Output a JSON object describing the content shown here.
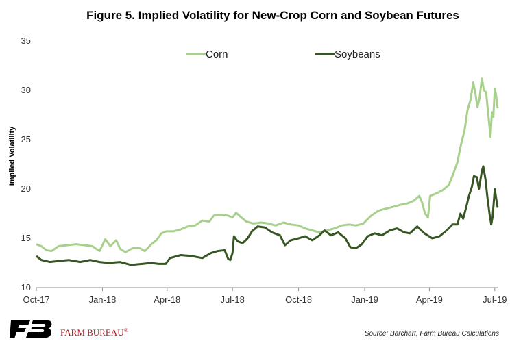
{
  "chart_data": {
    "type": "line",
    "title": "Figure 5. Implied Volatility for New-Crop Corn and Soybean Futures",
    "ylabel": "Implied Volatility",
    "xlabel": "",
    "ylim": [
      10,
      35
    ],
    "yticks": [
      "10",
      "15",
      "20",
      "25",
      "30",
      "35"
    ],
    "xtick_labels": [
      "Oct-17",
      "Jan-18",
      "Apr-18",
      "Jul-18",
      "Oct-18",
      "Jan-19",
      "Apr-19",
      "Jul-19"
    ],
    "xtick_dates": [
      "2017-10-01",
      "2018-01-01",
      "2018-04-01",
      "2018-07-01",
      "2018-10-01",
      "2019-01-01",
      "2019-04-01",
      "2019-07-01"
    ],
    "xlim": [
      "2017-10-01",
      "2019-07-05"
    ],
    "grid": false,
    "legend": "top",
    "series": [
      {
        "name": "Corn",
        "color": "#a8d08d",
        "points": [
          [
            "2017-10-01",
            14.4
          ],
          [
            "2017-10-08",
            14.2
          ],
          [
            "2017-10-15",
            13.8
          ],
          [
            "2017-10-22",
            13.7
          ],
          [
            "2017-11-01",
            14.2
          ],
          [
            "2017-11-12",
            14.3
          ],
          [
            "2017-11-25",
            14.4
          ],
          [
            "2017-12-08",
            14.3
          ],
          [
            "2017-12-18",
            14.2
          ],
          [
            "2017-12-28",
            13.7
          ],
          [
            "2018-01-05",
            14.9
          ],
          [
            "2018-01-12",
            14.2
          ],
          [
            "2018-01-20",
            14.8
          ],
          [
            "2018-01-26",
            13.9
          ],
          [
            "2018-02-02",
            13.6
          ],
          [
            "2018-02-12",
            14.0
          ],
          [
            "2018-02-22",
            14.0
          ],
          [
            "2018-03-01",
            13.7
          ],
          [
            "2018-03-10",
            14.4
          ],
          [
            "2018-03-17",
            14.8
          ],
          [
            "2018-03-24",
            15.5
          ],
          [
            "2018-03-31",
            15.7
          ],
          [
            "2018-04-10",
            15.7
          ],
          [
            "2018-04-20",
            15.9
          ],
          [
            "2018-04-30",
            16.2
          ],
          [
            "2018-05-10",
            16.3
          ],
          [
            "2018-05-20",
            16.8
          ],
          [
            "2018-05-30",
            16.7
          ],
          [
            "2018-06-05",
            17.3
          ],
          [
            "2018-06-15",
            17.4
          ],
          [
            "2018-06-25",
            17.3
          ],
          [
            "2018-07-01",
            17.1
          ],
          [
            "2018-07-06",
            17.6
          ],
          [
            "2018-07-12",
            17.2
          ],
          [
            "2018-07-20",
            16.7
          ],
          [
            "2018-07-30",
            16.5
          ],
          [
            "2018-08-10",
            16.6
          ],
          [
            "2018-08-20",
            16.5
          ],
          [
            "2018-08-30",
            16.3
          ],
          [
            "2018-09-10",
            16.6
          ],
          [
            "2018-09-20",
            16.4
          ],
          [
            "2018-10-01",
            16.3
          ],
          [
            "2018-10-10",
            16.0
          ],
          [
            "2018-10-20",
            15.8
          ],
          [
            "2018-10-30",
            15.6
          ],
          [
            "2018-11-10",
            15.8
          ],
          [
            "2018-11-20",
            16.0
          ],
          [
            "2018-11-30",
            16.3
          ],
          [
            "2018-12-10",
            16.4
          ],
          [
            "2018-12-20",
            16.3
          ],
          [
            "2018-12-30",
            16.5
          ],
          [
            "2019-01-10",
            17.3
          ],
          [
            "2019-01-20",
            17.8
          ],
          [
            "2019-01-30",
            18.0
          ],
          [
            "2019-02-10",
            18.2
          ],
          [
            "2019-02-20",
            18.4
          ],
          [
            "2019-02-28",
            18.5
          ],
          [
            "2019-03-10",
            18.8
          ],
          [
            "2019-03-18",
            19.3
          ],
          [
            "2019-03-22",
            18.6
          ],
          [
            "2019-03-26",
            17.5
          ],
          [
            "2019-03-30",
            17.1
          ],
          [
            "2019-04-02",
            19.3
          ],
          [
            "2019-04-12",
            19.6
          ],
          [
            "2019-04-20",
            19.9
          ],
          [
            "2019-04-28",
            20.4
          ],
          [
            "2019-05-04",
            21.5
          ],
          [
            "2019-05-10",
            22.7
          ],
          [
            "2019-05-15",
            24.5
          ],
          [
            "2019-05-20",
            26.0
          ],
          [
            "2019-05-24",
            28.0
          ],
          [
            "2019-05-28",
            29.0
          ],
          [
            "2019-06-01",
            30.8
          ],
          [
            "2019-06-04",
            29.7
          ],
          [
            "2019-06-07",
            28.3
          ],
          [
            "2019-06-10",
            29.3
          ],
          [
            "2019-06-13",
            31.2
          ],
          [
            "2019-06-16",
            30.0
          ],
          [
            "2019-06-19",
            29.8
          ],
          [
            "2019-06-22",
            27.5
          ],
          [
            "2019-06-25",
            25.3
          ],
          [
            "2019-06-27",
            27.8
          ],
          [
            "2019-06-29",
            27.3
          ],
          [
            "2019-07-01",
            30.2
          ],
          [
            "2019-07-03",
            29.4
          ],
          [
            "2019-07-05",
            28.2
          ]
        ]
      },
      {
        "name": "Soybeans",
        "color": "#375623",
        "points": [
          [
            "2017-10-01",
            13.2
          ],
          [
            "2017-10-08",
            12.8
          ],
          [
            "2017-10-20",
            12.6
          ],
          [
            "2017-11-01",
            12.7
          ],
          [
            "2017-11-15",
            12.8
          ],
          [
            "2017-12-01",
            12.6
          ],
          [
            "2017-12-15",
            12.8
          ],
          [
            "2017-12-28",
            12.6
          ],
          [
            "2018-01-10",
            12.5
          ],
          [
            "2018-01-25",
            12.6
          ],
          [
            "2018-02-10",
            12.3
          ],
          [
            "2018-02-25",
            12.4
          ],
          [
            "2018-03-10",
            12.5
          ],
          [
            "2018-03-20",
            12.4
          ],
          [
            "2018-03-30",
            12.4
          ],
          [
            "2018-04-05",
            13.0
          ],
          [
            "2018-04-20",
            13.3
          ],
          [
            "2018-05-05",
            13.2
          ],
          [
            "2018-05-20",
            13.0
          ],
          [
            "2018-06-01",
            13.5
          ],
          [
            "2018-06-10",
            13.7
          ],
          [
            "2018-06-20",
            13.8
          ],
          [
            "2018-06-25",
            12.9
          ],
          [
            "2018-06-28",
            12.8
          ],
          [
            "2018-07-01",
            13.5
          ],
          [
            "2018-07-03",
            15.2
          ],
          [
            "2018-07-08",
            14.7
          ],
          [
            "2018-07-15",
            14.5
          ],
          [
            "2018-07-22",
            15.0
          ],
          [
            "2018-07-28",
            15.7
          ],
          [
            "2018-08-05",
            16.2
          ],
          [
            "2018-08-15",
            16.1
          ],
          [
            "2018-08-25",
            15.6
          ],
          [
            "2018-09-05",
            15.3
          ],
          [
            "2018-09-12",
            14.3
          ],
          [
            "2018-09-20",
            14.8
          ],
          [
            "2018-10-01",
            15.0
          ],
          [
            "2018-10-10",
            15.2
          ],
          [
            "2018-10-20",
            14.8
          ],
          [
            "2018-10-30",
            15.3
          ],
          [
            "2018-11-06",
            15.8
          ],
          [
            "2018-11-15",
            15.3
          ],
          [
            "2018-11-25",
            15.6
          ],
          [
            "2018-12-05",
            15.0
          ],
          [
            "2018-12-12",
            14.1
          ],
          [
            "2018-12-20",
            14.0
          ],
          [
            "2018-12-28",
            14.4
          ],
          [
            "2019-01-05",
            15.2
          ],
          [
            "2019-01-15",
            15.5
          ],
          [
            "2019-01-25",
            15.3
          ],
          [
            "2019-02-05",
            15.8
          ],
          [
            "2019-02-15",
            16.0
          ],
          [
            "2019-02-25",
            15.6
          ],
          [
            "2019-03-05",
            15.5
          ],
          [
            "2019-03-15",
            16.2
          ],
          [
            "2019-03-25",
            15.5
          ],
          [
            "2019-04-05",
            15.0
          ],
          [
            "2019-04-15",
            15.2
          ],
          [
            "2019-04-25",
            15.8
          ],
          [
            "2019-05-03",
            16.4
          ],
          [
            "2019-05-10",
            16.4
          ],
          [
            "2019-05-14",
            17.5
          ],
          [
            "2019-05-18",
            17.0
          ],
          [
            "2019-05-22",
            18.1
          ],
          [
            "2019-05-26",
            19.3
          ],
          [
            "2019-05-30",
            20.2
          ],
          [
            "2019-06-02",
            21.3
          ],
          [
            "2019-06-06",
            21.2
          ],
          [
            "2019-06-09",
            20.0
          ],
          [
            "2019-06-13",
            21.8
          ],
          [
            "2019-06-15",
            22.3
          ],
          [
            "2019-06-18",
            21.0
          ],
          [
            "2019-06-21",
            19.0
          ],
          [
            "2019-06-24",
            17.3
          ],
          [
            "2019-06-26",
            16.4
          ],
          [
            "2019-06-28",
            17.2
          ],
          [
            "2019-07-01",
            20.0
          ],
          [
            "2019-07-03",
            19.0
          ],
          [
            "2019-07-05",
            18.1
          ]
        ]
      }
    ]
  },
  "footer": {
    "source": "Source: Barchart, Farm Bureau Calculations",
    "brand_name": "FARM BUREAU",
    "brand_mark": "®",
    "brand_color": "#b5121b"
  }
}
